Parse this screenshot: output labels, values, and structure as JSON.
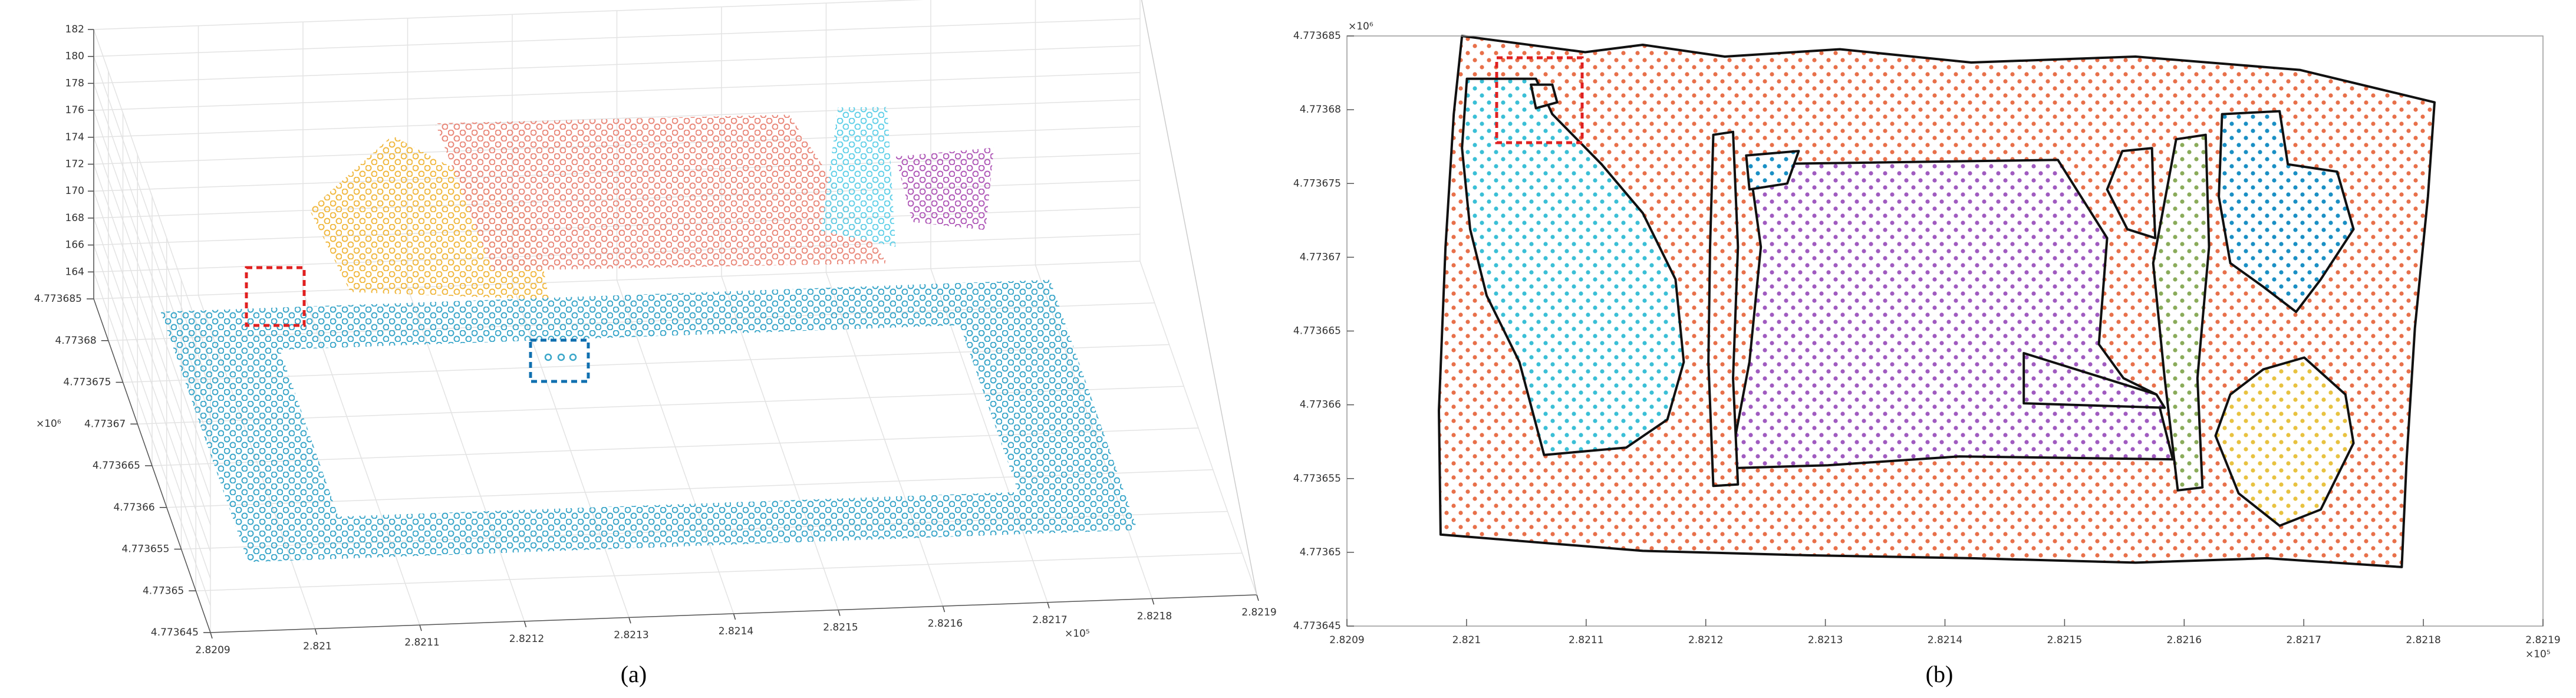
{
  "chart_data": [
    {
      "type": "scatter3d",
      "caption": "(a)",
      "xlim": [
        2.8209,
        2.8219
      ],
      "ylim": [
        4.773645,
        4.773685
      ],
      "zlim": [
        162,
        182
      ],
      "xticks": [
        2.8209,
        2.821,
        2.8211,
        2.8212,
        2.8213,
        2.8214,
        2.8215,
        2.8216,
        2.8217,
        2.8218,
        2.8219
      ],
      "yticks": [
        4.773645,
        4.77365,
        4.773655,
        4.77366,
        4.773665,
        4.77367,
        4.773675,
        4.77368,
        4.773685
      ],
      "zticks": [
        164,
        166,
        168,
        170,
        172,
        174,
        176,
        178,
        180,
        182
      ],
      "x_exponent": "×10⁵",
      "y_exponent": "×10⁶",
      "grid": true,
      "clusters": [
        {
          "color": "#f0b840",
          "x": [
            2.821098,
            2.821177,
            2.821311,
            2.821327,
            2.821137
          ],
          "y": [
            4.773682,
            4.773682,
            4.773682,
            4.773682,
            4.773682
          ],
          "z": [
            169.9,
            175.2,
            169.3,
            162.6,
            163.7
          ]
        },
        {
          "color": "#e9887a",
          "x": [
            2.821218,
            2.821556,
            2.82165,
            2.821273
          ],
          "y": [
            4.773682,
            4.773682,
            4.773682,
            4.773682
          ],
          "z": [
            176,
            175.7,
            164.4,
            164.9
          ]
        },
        {
          "color": "#62d0e8",
          "x": [
            2.821603,
            2.82165,
            2.821658,
            2.821587
          ],
          "y": [
            4.773682,
            4.773682,
            4.773682,
            4.773682
          ],
          "z": [
            176.1,
            176,
            165.6,
            167
          ]
        },
        {
          "color": "#b05ab8",
          "x": [
            2.821658,
            2.821752,
            2.821744,
            2.821674
          ],
          "y": [
            4.773682,
            4.773682,
            4.773682,
            4.773682
          ],
          "z": [
            172.3,
            172.7,
            166.6,
            167.4
          ]
        },
        {
          "color": "#3aa6c9",
          "x": [
            2.82095,
            2.8218,
            2.8218,
            2.82095
          ],
          "y": [
            4.77365,
            4.77365,
            4.77368,
            4.77368
          ],
          "z": [
            164,
            164,
            164,
            164
          ],
          "hole": {
            "x": [
              2.82105,
              2.8217,
              2.8217,
              2.82105
            ],
            "y": [
              4.773655,
              4.773655,
              4.773675,
              4.773675
            ],
            "z": [
              164,
              164,
              164,
              164
            ]
          }
        }
      ]
    },
    {
      "type": "scatter",
      "caption": "(b)",
      "xlim": [
        2.8209,
        2.8219
      ],
      "ylim": [
        4.773645,
        4.773685
      ],
      "xticks": [
        2.8209,
        2.821,
        2.8211,
        2.8212,
        2.8213,
        2.8214,
        2.8215,
        2.8216,
        2.8217,
        2.8218,
        2.8219
      ],
      "yticks": [
        4.773645,
        4.77365,
        4.773655,
        4.77366,
        4.773665,
        4.77367,
        4.773675,
        4.77368,
        4.773685
      ],
      "x_exponent": "×10⁵",
      "y_exponent": "×10⁶",
      "regions": [
        {
          "color": "#e8704a",
          "x": [
            2.8209962,
            2.8210992,
            2.8211473,
            2.8212159,
            2.8213121,
            2.821422,
            2.8215593,
            2.8216967,
            2.8218093,
            2.8218038,
            2.8217929,
            2.821786,
            2.8217819,
            2.8216692,
            2.8215593,
            2.821422,
            2.8212846,
            2.8211473,
            2.8209783,
            2.8209769,
            2.8209824,
            2.8209893
          ],
          "y": [
            4.773685,
            4.7736839,
            4.7736844,
            4.7736836,
            4.7736841,
            4.7736832,
            4.7736836,
            4.7736827,
            4.7736805,
            4.7736741,
            4.7736652,
            4.7736563,
            4.773649,
            4.7736496,
            4.7736493,
            4.7736496,
            4.7736498,
            4.7736501,
            4.7736512,
            4.7736596,
            4.7736707,
            4.7736797
          ]
        },
        {
          "color": "#3bbfd6",
          "x": [
            2.8210003,
            2.821058,
            2.8210717,
            2.8211129,
            2.8211473,
            2.8211747,
            2.8211816,
            2.8211679,
            2.8211335,
            2.8210648,
            2.8210442,
            2.8210168,
            2.821003,
            2.8209962
          ],
          "y": [
            4.7736821,
            4.7736821,
            4.7736797,
            4.7736763,
            4.773673,
            4.7736685,
            4.7736629,
            4.773659,
            4.7736571,
            4.7736566,
            4.7736629,
            4.7736674,
            4.7736719,
            4.7736774
          ]
        },
        {
          "color": "#e8704a",
          "x": [
            2.8210538,
            2.8210717,
            2.8210758,
            2.821058
          ],
          "y": [
            4.7736817,
            4.7736817,
            4.7736805,
            4.7736801
          ]
        },
        {
          "color": "#a05bc0",
          "x": [
            2.8212365,
            2.8214944,
            2.8215356,
            2.8215287,
            2.8215493,
            2.8215768,
            2.8215905,
            2.821412,
            2.8213021,
            2.8212197,
            2.8212365,
            2.8212461
          ],
          "y": [
            4.7736763,
            4.7736766,
            4.7736713,
            4.7736641,
            4.7736618,
            4.7736607,
            4.7736563,
            4.7736565,
            4.7736559,
            4.7736557,
            4.7736629,
            4.7736707
          ]
        },
        {
          "color": "#a05bc0",
          "x": [
            2.8214659,
            2.8215768,
            2.8215837,
            2.8214659
          ],
          "y": [
            4.7736635,
            4.7736607,
            4.7736598,
            4.7736601
          ]
        },
        {
          "color": "#e8704a",
          "x": [
            2.8212063,
            2.8212228,
            2.8212269,
            2.8212228,
            2.8212269,
            2.8212063,
            2.8212022,
            2.8212036
          ],
          "y": [
            4.7736783,
            4.7736785,
            4.7736707,
            4.7736618,
            4.7736546,
            4.7736545,
            4.7736629,
            4.7736707
          ]
        },
        {
          "color": "#1a8fc4",
          "x": [
            2.8212338,
            2.8212777,
            2.8212681,
            2.8212365
          ],
          "y": [
            4.7736769,
            4.7736772,
            4.773675,
            4.7736746
          ]
        },
        {
          "color": "#e8704a",
          "x": [
            2.8215483,
            2.8215731,
            2.8215741,
            2.8215758,
            2.8215525,
            2.8215356
          ],
          "y": [
            4.7736772,
            4.7736774,
            4.7736746,
            4.7736713,
            4.7736719,
            4.7736746
          ]
        },
        {
          "color": "#8aab5a",
          "x": [
            2.8215933,
            2.821618,
            2.8216208,
            2.8216111,
            2.8216153,
            2.8215947,
            2.8215837,
            2.8215741
          ],
          "y": [
            4.773678,
            4.7736783,
            4.7736707,
            4.7736618,
            4.7736544,
            4.7736542,
            4.7736618,
            4.7736696
          ]
        },
        {
          "color": "#1a8fc4",
          "x": [
            2.8216317,
            2.8216798,
            2.8216867,
            2.8217279,
            2.8217416,
            2.8217142,
            2.8216936,
            2.8216661,
            2.8216386,
            2.821629
          ],
          "y": [
            4.7736797,
            4.7736799,
            4.7736763,
            4.7736758,
            4.7736719,
            4.7736685,
            4.7736663,
            4.773668,
            4.7736696,
            4.7736741
          ]
        },
        {
          "color": "#e8c240",
          "x": [
            2.8216661,
            2.8217004,
            2.8217348,
            2.8217416,
            2.8217142,
            2.8216798,
            2.8216455,
            2.8216262,
            2.8216386
          ],
          "y": [
            4.7736624,
            4.7736632,
            4.7736607,
            4.7736574,
            4.7736529,
            4.7736518,
            4.773654,
            4.7736579,
            4.7736607
          ]
        }
      ]
    }
  ]
}
